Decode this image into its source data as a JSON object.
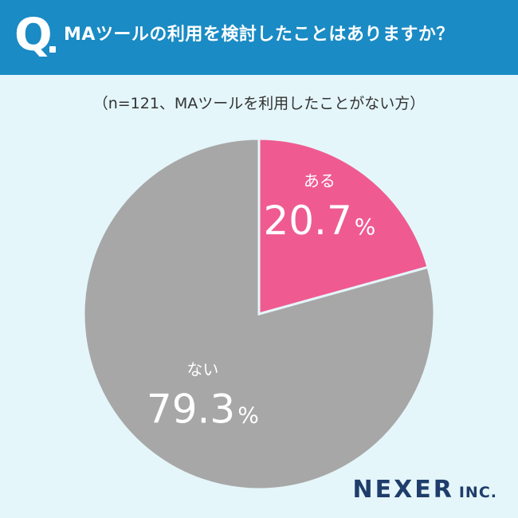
{
  "header": {
    "q_letter": "Q",
    "question": "MAツールの利用を検討したことはありますか？"
  },
  "subtitle": "（n=121、MAツールを利用したことがない方）",
  "colors": {
    "header_bg": "#1a8bc4",
    "background": "#e4f6fa",
    "slice_yes": "#ef5b91",
    "slice_no": "#a7a7a7"
  },
  "chart_data": {
    "type": "pie",
    "slices": [
      {
        "label": "ある",
        "value": 20.7,
        "value_text": "20.7",
        "unit": "%",
        "color": "#ef5b91"
      },
      {
        "label": "ない",
        "value": 79.3,
        "value_text": "79.3",
        "unit": "%",
        "color": "#a7a7a7"
      }
    ]
  },
  "brand": {
    "main": "NEXER",
    "sub": "INC."
  }
}
